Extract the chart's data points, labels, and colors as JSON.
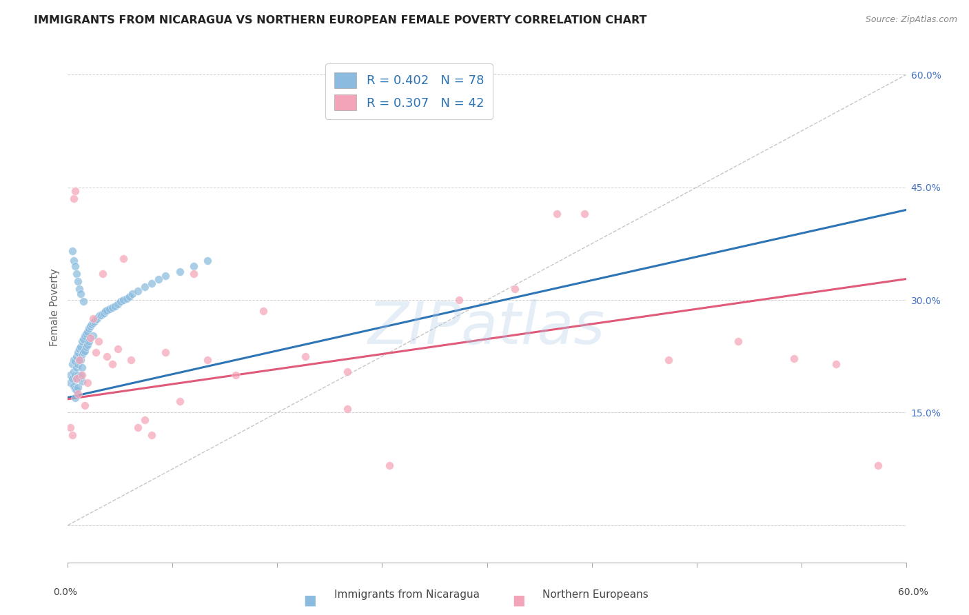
{
  "title": "IMMIGRANTS FROM NICARAGUA VS NORTHERN EUROPEAN FEMALE POVERTY CORRELATION CHART",
  "source": "Source: ZipAtlas.com",
  "ylabel": "Female Poverty",
  "y_ticks": [
    0.0,
    0.15,
    0.3,
    0.45,
    0.6
  ],
  "y_tick_labels": [
    "",
    "15.0%",
    "30.0%",
    "45.0%",
    "60.0%"
  ],
  "x_lim": [
    0.0,
    0.6
  ],
  "y_lim": [
    -0.05,
    0.63
  ],
  "blue_R": 0.402,
  "blue_N": 78,
  "pink_R": 0.307,
  "pink_N": 42,
  "blue_color": "#8bbcdf",
  "pink_color": "#f4a4b8",
  "blue_line_color": "#2e75b6",
  "pink_line_color": "#e05a7a",
  "diagonal_color": "#c0c0c0",
  "legend_label_blue": "Immigrants from Nicaragua",
  "legend_label_pink": "Northern Europeans",
  "blue_points_x": [
    0.002,
    0.002,
    0.003,
    0.003,
    0.004,
    0.004,
    0.004,
    0.005,
    0.005,
    0.005,
    0.005,
    0.006,
    0.006,
    0.006,
    0.006,
    0.007,
    0.007,
    0.007,
    0.007,
    0.008,
    0.008,
    0.008,
    0.009,
    0.009,
    0.009,
    0.01,
    0.01,
    0.01,
    0.01,
    0.011,
    0.011,
    0.012,
    0.012,
    0.013,
    0.013,
    0.014,
    0.014,
    0.015,
    0.015,
    0.016,
    0.017,
    0.018,
    0.018,
    0.019,
    0.02,
    0.021,
    0.022,
    0.023,
    0.024,
    0.025,
    0.026,
    0.027,
    0.028,
    0.03,
    0.032,
    0.034,
    0.036,
    0.038,
    0.04,
    0.042,
    0.044,
    0.046,
    0.05,
    0.055,
    0.06,
    0.065,
    0.07,
    0.08,
    0.09,
    0.1,
    0.003,
    0.004,
    0.005,
    0.006,
    0.007,
    0.008,
    0.009,
    0.011
  ],
  "blue_points_y": [
    0.2,
    0.19,
    0.215,
    0.195,
    0.22,
    0.205,
    0.185,
    0.218,
    0.2,
    0.182,
    0.17,
    0.225,
    0.21,
    0.195,
    0.18,
    0.23,
    0.215,
    0.2,
    0.183,
    0.235,
    0.218,
    0.198,
    0.238,
    0.22,
    0.2,
    0.245,
    0.228,
    0.21,
    0.192,
    0.248,
    0.23,
    0.252,
    0.232,
    0.255,
    0.238,
    0.258,
    0.24,
    0.262,
    0.245,
    0.265,
    0.268,
    0.27,
    0.252,
    0.272,
    0.274,
    0.275,
    0.278,
    0.28,
    0.28,
    0.282,
    0.283,
    0.285,
    0.286,
    0.288,
    0.29,
    0.292,
    0.295,
    0.298,
    0.3,
    0.302,
    0.305,
    0.308,
    0.312,
    0.318,
    0.322,
    0.328,
    0.332,
    0.338,
    0.345,
    0.352,
    0.365,
    0.352,
    0.345,
    0.335,
    0.325,
    0.315,
    0.308,
    0.298
  ],
  "pink_points_x": [
    0.002,
    0.003,
    0.004,
    0.005,
    0.006,
    0.007,
    0.008,
    0.01,
    0.012,
    0.014,
    0.016,
    0.018,
    0.02,
    0.022,
    0.025,
    0.028,
    0.032,
    0.036,
    0.04,
    0.045,
    0.05,
    0.055,
    0.06,
    0.07,
    0.08,
    0.09,
    0.1,
    0.12,
    0.14,
    0.17,
    0.2,
    0.23,
    0.28,
    0.32,
    0.37,
    0.43,
    0.48,
    0.52,
    0.55,
    0.58,
    0.2,
    0.35
  ],
  "pink_points_y": [
    0.13,
    0.12,
    0.435,
    0.445,
    0.195,
    0.175,
    0.22,
    0.2,
    0.16,
    0.19,
    0.25,
    0.275,
    0.23,
    0.245,
    0.335,
    0.225,
    0.215,
    0.235,
    0.355,
    0.22,
    0.13,
    0.14,
    0.12,
    0.23,
    0.165,
    0.335,
    0.22,
    0.2,
    0.285,
    0.225,
    0.205,
    0.08,
    0.3,
    0.315,
    0.415,
    0.22,
    0.245,
    0.222,
    0.215,
    0.08,
    0.155,
    0.415
  ],
  "blue_line_x": [
    0.0,
    0.6
  ],
  "blue_line_y": [
    0.17,
    0.42
  ],
  "pink_line_x": [
    0.0,
    0.6
  ],
  "pink_line_y": [
    0.168,
    0.328
  ],
  "diag_line_x": [
    0.0,
    0.6
  ],
  "diag_line_y": [
    0.0,
    0.6
  ],
  "watermark_text": "ZIPatlas",
  "title_fontsize": 11.5,
  "tick_fontsize": 10,
  "marker_size": 72
}
